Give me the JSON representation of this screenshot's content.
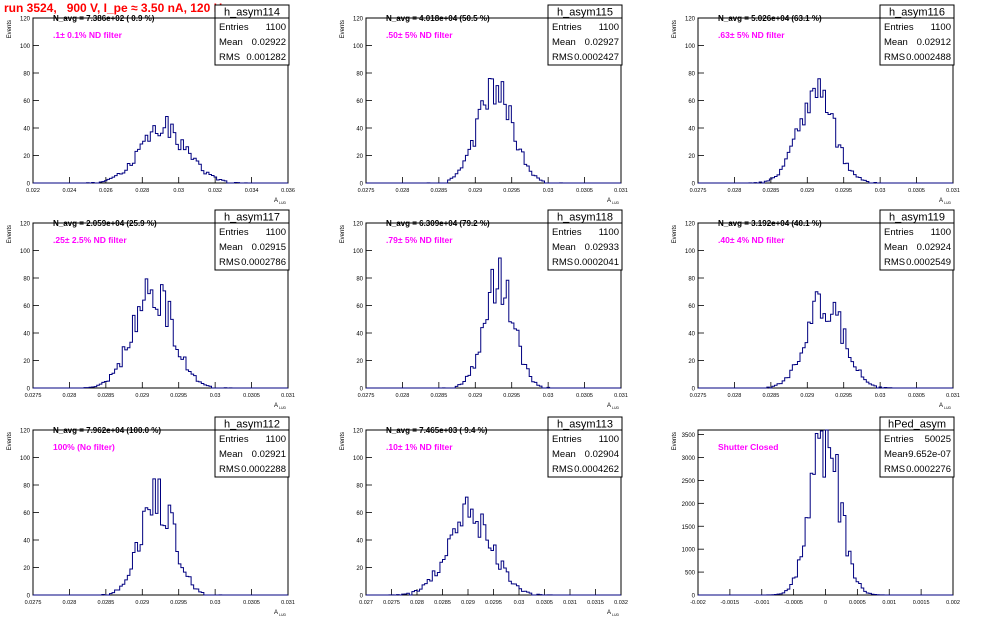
{
  "page_title": "run 3524,   900 V, I_pe ≈ 3.50 nA, 120 Hz",
  "colors": {
    "title": "#ff0000",
    "histogram": "#000080",
    "annotation": "#ff00ff",
    "navg": "#000000",
    "frame": "#000000"
  },
  "chart_data": [
    {
      "type": "bar",
      "title": "h_asym114",
      "stats": {
        "Entries": "1100",
        "Mean": "0.02922",
        "RMS": "0.001282"
      },
      "navg": "N_avg = 7.386e+02 ( 0.9 %)",
      "annotation": ".1± 0.1% ND filter",
      "ylabel": "Events",
      "xlabel": "A",
      "xlim": [
        0.022,
        0.036
      ],
      "ylim": [
        0,
        120
      ],
      "x_ticks": [
        "0.022",
        "0.024",
        "0.026",
        "0.028",
        "0.03",
        "0.032",
        "0.034",
        "0.036"
      ],
      "y_ticks": [
        "0",
        "20",
        "40",
        "60",
        "80",
        "100",
        "120"
      ],
      "mean": 0.02922,
      "rms": 0.001282,
      "peak": 39,
      "seed": 114
    },
    {
      "type": "bar",
      "title": "h_asym115",
      "stats": {
        "Entries": "1100",
        "Mean": "0.02927",
        "RMS": "0.0002427"
      },
      "navg": "N_avg = 4.018e+04 (50.5 %)",
      "annotation": ".50± 5% ND filter",
      "ylabel": "Events",
      "xlabel": "A",
      "xlim": [
        0.0275,
        0.031
      ],
      "ylim": [
        0,
        120
      ],
      "x_ticks": [
        "0.0275",
        "0.028",
        "0.0285",
        "0.029",
        "0.0295",
        "0.03",
        "0.0305",
        "0.031"
      ],
      "y_ticks": [
        "0",
        "20",
        "40",
        "60",
        "80",
        "100",
        "120"
      ],
      "mean": 0.02927,
      "rms": 0.0002427,
      "peak": 65,
      "seed": 115
    },
    {
      "type": "bar",
      "title": "h_asym116",
      "stats": {
        "Entries": "1100",
        "Mean": "0.02912",
        "RMS": "0.0002488"
      },
      "navg": "N_avg = 5.026e+04 (63.1 %)",
      "annotation": ".63± 5% ND filter",
      "ylabel": "Events",
      "xlabel": "A",
      "xlim": [
        0.0275,
        0.031
      ],
      "ylim": [
        0,
        120
      ],
      "x_ticks": [
        "0.0275",
        "0.028",
        "0.0285",
        "0.029",
        "0.0295",
        "0.03",
        "0.0305",
        "0.031"
      ],
      "y_ticks": [
        "0",
        "20",
        "40",
        "60",
        "80",
        "100",
        "120"
      ],
      "mean": 0.02912,
      "rms": 0.0002488,
      "peak": 65,
      "seed": 116
    },
    {
      "type": "bar",
      "title": "h_asym117",
      "stats": {
        "Entries": "1100",
        "Mean": "0.02915",
        "RMS": "0.0002786"
      },
      "navg": "N_avg = 2.059e+04 (25.9 %)",
      "annotation": ".25± 2.5% ND filter",
      "ylabel": "Events",
      "xlabel": "A",
      "xlim": [
        0.0275,
        0.031
      ],
      "ylim": [
        0,
        120
      ],
      "x_ticks": [
        "0.0275",
        "0.028",
        "0.0285",
        "0.029",
        "0.0295",
        "0.03",
        "0.0305",
        "0.031"
      ],
      "y_ticks": [
        "0",
        "20",
        "40",
        "60",
        "80",
        "100",
        "120"
      ],
      "mean": 0.02915,
      "rms": 0.0002786,
      "peak": 70,
      "seed": 117
    },
    {
      "type": "bar",
      "title": "h_asym118",
      "stats": {
        "Entries": "1100",
        "Mean": "0.02933",
        "RMS": "0.0002041"
      },
      "navg": "N_avg = 6.309e+04 (79.2 %)",
      "annotation": ".79± 5% ND filter",
      "ylabel": "Events",
      "xlabel": "A",
      "xlim": [
        0.0275,
        0.031
      ],
      "ylim": [
        0,
        120
      ],
      "x_ticks": [
        "0.0275",
        "0.028",
        "0.0285",
        "0.029",
        "0.0295",
        "0.03",
        "0.0305",
        "0.031"
      ],
      "y_ticks": [
        "0",
        "20",
        "40",
        "60",
        "80",
        "100",
        "120"
      ],
      "mean": 0.02933,
      "rms": 0.0002041,
      "peak": 78,
      "seed": 118
    },
    {
      "type": "bar",
      "title": "h_asym119",
      "stats": {
        "Entries": "1100",
        "Mean": "0.02924",
        "RMS": "0.0002549"
      },
      "navg": "N_avg = 3.192e+04 (40.1 %)",
      "annotation": ".40± 4% ND filter",
      "ylabel": "Events",
      "xlabel": "A",
      "xlim": [
        0.0275,
        0.031
      ],
      "ylim": [
        0,
        120
      ],
      "x_ticks": [
        "0.0275",
        "0.028",
        "0.0285",
        "0.029",
        "0.0295",
        "0.03",
        "0.0305",
        "0.031"
      ],
      "y_ticks": [
        "0",
        "20",
        "40",
        "60",
        "80",
        "100",
        "120"
      ],
      "mean": 0.02924,
      "rms": 0.0002549,
      "peak": 63,
      "seed": 119
    },
    {
      "type": "bar",
      "title": "h_asym112",
      "stats": {
        "Entries": "1100",
        "Mean": "0.02921",
        "RMS": "0.0002288"
      },
      "navg": "N_avg = 7.962e+04 (100.0 %)",
      "annotation": "100% (No filter)",
      "ylabel": "Events",
      "xlabel": "A",
      "xlim": [
        0.0275,
        0.031
      ],
      "ylim": [
        0,
        120
      ],
      "x_ticks": [
        "0.0275",
        "0.028",
        "0.0285",
        "0.029",
        "0.0295",
        "0.03",
        "0.0305",
        "0.031"
      ],
      "y_ticks": [
        "0",
        "20",
        "40",
        "60",
        "80",
        "100",
        "120"
      ],
      "mean": 0.02921,
      "rms": 0.0002288,
      "peak": 70,
      "seed": 112
    },
    {
      "type": "bar",
      "title": "h_asym113",
      "stats": {
        "Entries": "1100",
        "Mean": "0.02904",
        "RMS": "0.0004262"
      },
      "navg": "N_avg = 7.465e+03 ( 9.4 %)",
      "annotation": ".10± 1% ND filter",
      "ylabel": "Events",
      "xlabel": "A",
      "xlim": [
        0.027,
        0.032
      ],
      "ylim": [
        0,
        120
      ],
      "x_ticks": [
        "0.027",
        "0.0275",
        "0.028",
        "0.0285",
        "0.029",
        "0.0295",
        "0.03",
        "0.0305",
        "0.031",
        "0.0315",
        "0.032"
      ],
      "y_ticks": [
        "0",
        "20",
        "40",
        "60",
        "80",
        "100",
        "120"
      ],
      "mean": 0.02904,
      "rms": 0.0004262,
      "peak": 60,
      "seed": 113
    },
    {
      "type": "bar",
      "title": "hPed_asym",
      "stats": {
        "Entries": "50025",
        "Mean": "-9.652e-07",
        "RMS": "0.0002276"
      },
      "navg": "",
      "annotation": "Shutter Closed",
      "ylabel": "Events",
      "xlabel": "",
      "xlim": [
        -0.002,
        0.002
      ],
      "ylim": [
        0,
        3600
      ],
      "x_ticks": [
        "-0.002",
        "-0.0015",
        "-0.001",
        "-0.0005",
        "0",
        "0.0005",
        "0.001",
        "0.0015",
        "0.002"
      ],
      "y_ticks": [
        "0",
        "500",
        "1000",
        "1500",
        "2000",
        "2500",
        "3000",
        "3500"
      ],
      "mean": -9.652e-07,
      "rms": 0.0002276,
      "peak": 3400,
      "seed": 1
    }
  ]
}
